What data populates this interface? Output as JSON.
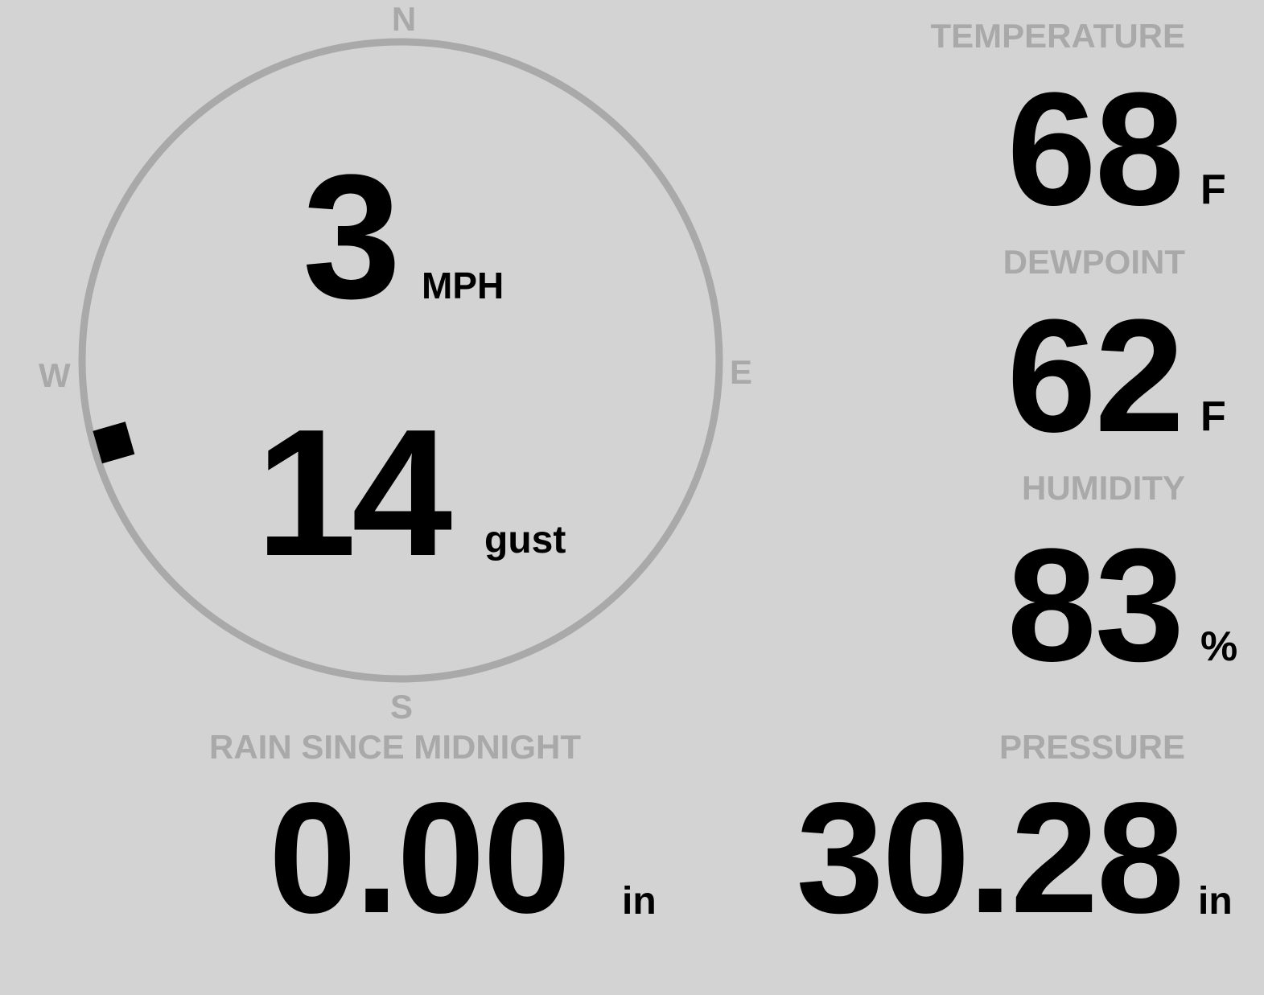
{
  "wind": {
    "compass": {
      "north": "N",
      "south": "S",
      "east": "E",
      "west": "W"
    },
    "direction_degrees": 254,
    "speed": "3",
    "speed_unit": "MPH",
    "gust": "14",
    "gust_label": "gust"
  },
  "temperature": {
    "label": "TEMPERATURE",
    "value": "68",
    "unit": "F"
  },
  "dewpoint": {
    "label": "DEWPOINT",
    "value": "62",
    "unit": "F"
  },
  "humidity": {
    "label": "HUMIDITY",
    "value": "83",
    "unit": "%"
  },
  "rain": {
    "label": "RAIN SINCE MIDNIGHT",
    "value": "0.00",
    "unit": "in"
  },
  "pressure": {
    "label": "PRESSURE",
    "value": "30.28",
    "unit": "in"
  },
  "colors": {
    "background": "#d3d3d3",
    "label": "#a9a9a9",
    "value": "#000000"
  }
}
